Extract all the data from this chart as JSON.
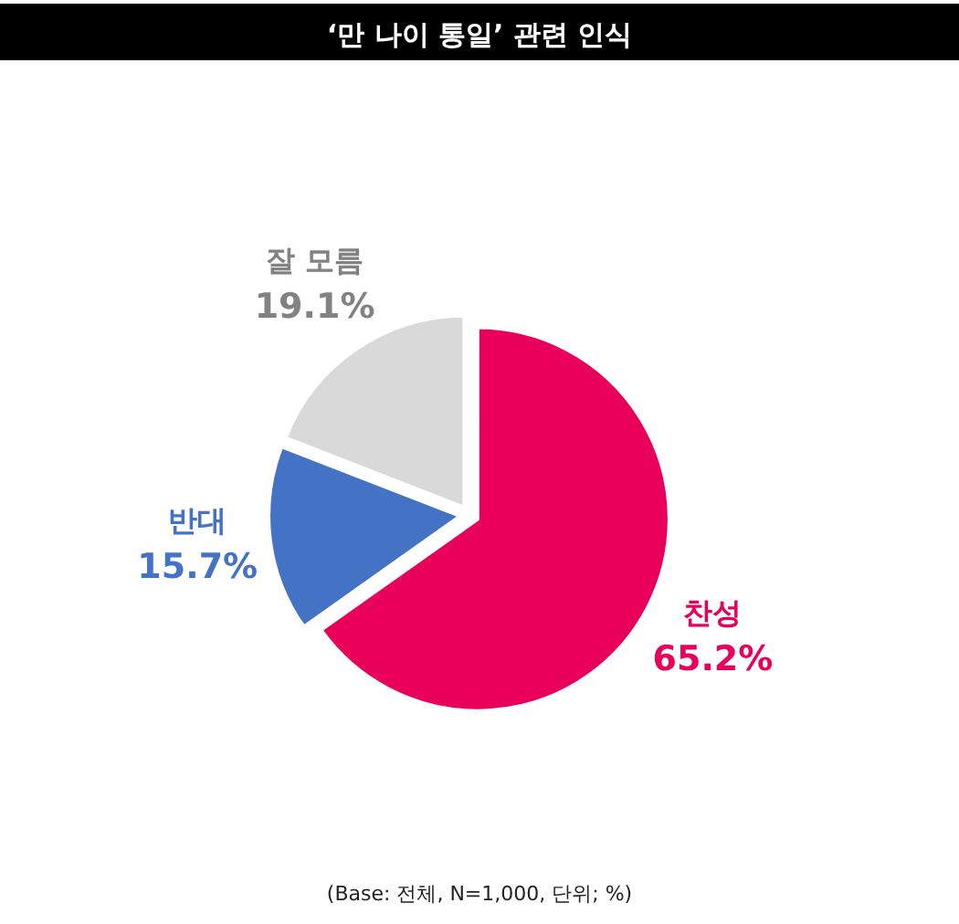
{
  "chart_data": {
    "type": "pie",
    "title": "‘만 나이 통일’ 관련 인식",
    "categories": [
      "찬성",
      "반대",
      "잘 모름"
    ],
    "values": [
      65.2,
      15.7,
      19.1
    ],
    "value_labels": [
      "65.2%",
      "15.7%",
      "19.1%"
    ],
    "colors": [
      "#e8005a",
      "#4472c4",
      "#d9d9d9"
    ],
    "annotations": [
      "(Base: 전체, N=1,000, 단위; %)"
    ]
  }
}
